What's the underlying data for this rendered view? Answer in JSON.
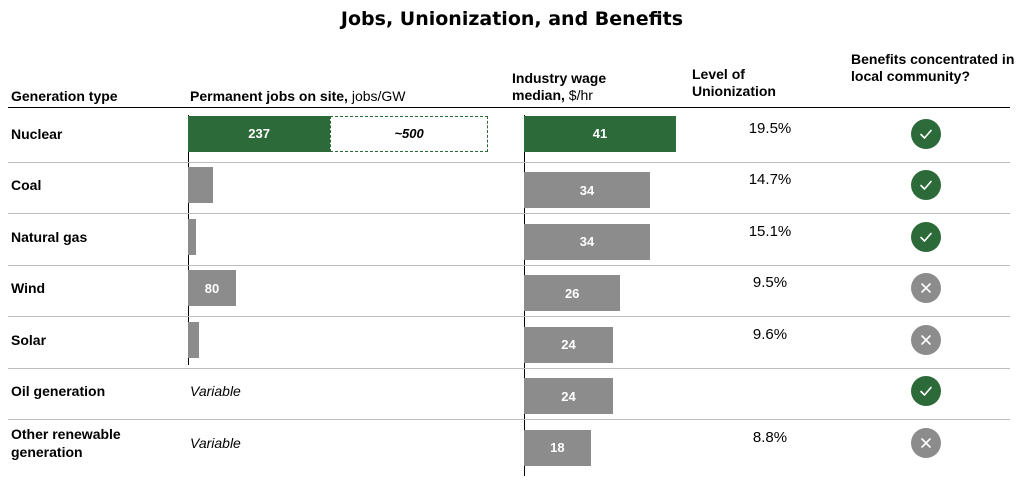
{
  "chart_data": {
    "type": "table",
    "title": "Jobs, Unionization, and Benefits",
    "columns": {
      "type": "Generation type",
      "jobs_bold": "Permanent jobs on site,",
      "jobs_unit": " jobs/GW",
      "wage_bold": "Industry wage median,",
      "wage_unit": " $/hr",
      "union": "Level of Unionization",
      "benefits": "Benefits concentrated in local community?"
    },
    "colors": {
      "green": "#2d6a39",
      "gray": "#8c8c8c"
    },
    "jobs_scale_max": 500,
    "wage_scale_max": 41,
    "rows": [
      {
        "type": "Nuclear",
        "jobs": 237,
        "jobs_label": "237",
        "jobs_potential": 500,
        "jobs_potential_label": "~500",
        "wage": 41,
        "wage_label": "41",
        "union": "19.5%",
        "benefits": true
      },
      {
        "type": "Coal",
        "jobs": 42,
        "jobs_label": "",
        "wage": 34,
        "wage_label": "34",
        "union": "14.7%",
        "benefits": true
      },
      {
        "type": "Natural gas",
        "jobs": 14,
        "jobs_label": "",
        "wage": 34,
        "wage_label": "34",
        "union": "15.1%",
        "benefits": true
      },
      {
        "type": "Wind",
        "jobs": 80,
        "jobs_label": "80",
        "wage": 26,
        "wage_label": "26",
        "union": "9.5%",
        "benefits": false
      },
      {
        "type": "Solar",
        "jobs": 18,
        "jobs_label": "",
        "wage": 24,
        "wage_label": "24",
        "union": "9.6%",
        "benefits": false
      },
      {
        "type": "Oil generation",
        "jobs": null,
        "jobs_text": "Variable",
        "wage": 24,
        "wage_label": "24",
        "union": "",
        "benefits": true
      },
      {
        "type": "Other renewable generation",
        "jobs": null,
        "jobs_text": "Variable",
        "wage": 18,
        "wage_label": "18",
        "union": "8.8%",
        "benefits": false
      }
    ]
  }
}
